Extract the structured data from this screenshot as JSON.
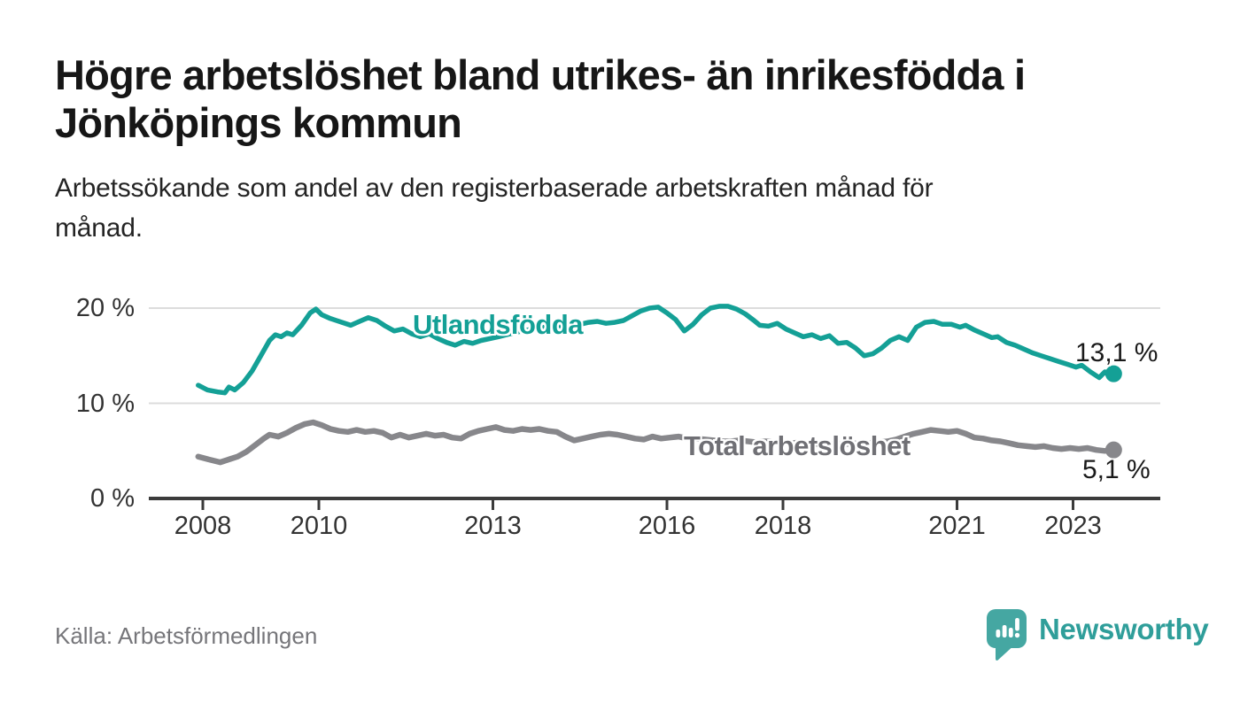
{
  "title_lines": [
    "Högre arbetslöshet bland utrikes- än inrikesfödda i",
    "Jönköpings kommun"
  ],
  "subtitle_lines": [
    "Arbetssökande som andel av den registerbaserade arbetskraften månad för",
    "månad."
  ],
  "source": "Källa: Arbetsförmedlingen",
  "branding": {
    "name": "Newsworthy",
    "icon": "newsworthy-speech-bubble-bar-chart-icon",
    "wordmark_color": "#2f9e9a",
    "icon_color": "#45a7a2"
  },
  "colors": {
    "foreign_born_line": "#14a096",
    "total_line": "#87878b",
    "total_label_text": "#707075",
    "grid": "#dcdcdc",
    "axis": "#3b3b3b",
    "axis_text": "#333333",
    "value_label_text": "#1a1a1a"
  },
  "chart_data": {
    "type": "line",
    "x_unit": "year (monthly data)",
    "y_unit": "percent of registered labour force",
    "x_axis": {
      "ticks": [
        2008,
        2010,
        2013,
        2016,
        2018,
        2021,
        2023
      ],
      "range": [
        2007.9,
        2024.4
      ]
    },
    "y_axis": {
      "tick_labels": [
        "0 %",
        "10 %",
        "20 %"
      ],
      "tick_values": [
        0,
        10,
        20
      ],
      "range": [
        0,
        21
      ],
      "grid": true
    },
    "series": [
      {
        "name": "Utlandsfödda",
        "color": "#14a096",
        "end_label": "13,1 %",
        "end_value": 13.1,
        "points": [
          [
            2007.92,
            11.9
          ],
          [
            2008.08,
            11.4
          ],
          [
            2008.25,
            11.2
          ],
          [
            2008.38,
            11.1
          ],
          [
            2008.45,
            11.7
          ],
          [
            2008.55,
            11.4
          ],
          [
            2008.7,
            12.2
          ],
          [
            2008.85,
            13.4
          ],
          [
            2009.0,
            15.0
          ],
          [
            2009.15,
            16.6
          ],
          [
            2009.25,
            17.2
          ],
          [
            2009.35,
            17.0
          ],
          [
            2009.45,
            17.4
          ],
          [
            2009.55,
            17.2
          ],
          [
            2009.7,
            18.2
          ],
          [
            2009.85,
            19.5
          ],
          [
            2009.95,
            19.9
          ],
          [
            2010.05,
            19.3
          ],
          [
            2010.2,
            18.9
          ],
          [
            2010.4,
            18.5
          ],
          [
            2010.55,
            18.2
          ],
          [
            2010.7,
            18.6
          ],
          [
            2010.85,
            19.0
          ],
          [
            2011.0,
            18.7
          ],
          [
            2011.15,
            18.1
          ],
          [
            2011.3,
            17.6
          ],
          [
            2011.45,
            17.8
          ],
          [
            2011.6,
            17.3
          ],
          [
            2011.75,
            17.0
          ],
          [
            2011.9,
            17.3
          ],
          [
            2012.05,
            16.8
          ],
          [
            2012.2,
            16.4
          ],
          [
            2012.35,
            16.1
          ],
          [
            2012.5,
            16.5
          ],
          [
            2012.65,
            16.3
          ],
          [
            2012.8,
            16.6
          ],
          [
            2012.95,
            16.8
          ],
          [
            2013.1,
            17.0
          ],
          [
            2013.3,
            17.3
          ],
          [
            2013.5,
            17.6
          ],
          [
            2013.7,
            17.8
          ],
          [
            2013.9,
            18.0
          ],
          [
            2014.1,
            18.2
          ],
          [
            2014.3,
            18.0
          ],
          [
            2014.5,
            18.3
          ],
          [
            2014.65,
            18.5
          ],
          [
            2014.8,
            18.6
          ],
          [
            2014.95,
            18.4
          ],
          [
            2015.1,
            18.5
          ],
          [
            2015.25,
            18.7
          ],
          [
            2015.4,
            19.2
          ],
          [
            2015.55,
            19.7
          ],
          [
            2015.7,
            20.0
          ],
          [
            2015.85,
            20.1
          ],
          [
            2016.0,
            19.5
          ],
          [
            2016.15,
            18.8
          ],
          [
            2016.3,
            17.6
          ],
          [
            2016.45,
            18.3
          ],
          [
            2016.6,
            19.3
          ],
          [
            2016.75,
            20.0
          ],
          [
            2016.9,
            20.2
          ],
          [
            2017.05,
            20.2
          ],
          [
            2017.2,
            19.9
          ],
          [
            2017.35,
            19.4
          ],
          [
            2017.5,
            18.7
          ],
          [
            2017.6,
            18.2
          ],
          [
            2017.75,
            18.1
          ],
          [
            2017.9,
            18.4
          ],
          [
            2018.05,
            17.8
          ],
          [
            2018.2,
            17.4
          ],
          [
            2018.35,
            17.0
          ],
          [
            2018.5,
            17.2
          ],
          [
            2018.65,
            16.8
          ],
          [
            2018.8,
            17.1
          ],
          [
            2018.95,
            16.3
          ],
          [
            2019.1,
            16.4
          ],
          [
            2019.25,
            15.8
          ],
          [
            2019.4,
            15.0
          ],
          [
            2019.55,
            15.2
          ],
          [
            2019.7,
            15.8
          ],
          [
            2019.85,
            16.6
          ],
          [
            2020.0,
            17.0
          ],
          [
            2020.15,
            16.6
          ],
          [
            2020.3,
            18.0
          ],
          [
            2020.45,
            18.5
          ],
          [
            2020.6,
            18.6
          ],
          [
            2020.75,
            18.3
          ],
          [
            2020.9,
            18.3
          ],
          [
            2021.05,
            18.0
          ],
          [
            2021.15,
            18.2
          ],
          [
            2021.3,
            17.7
          ],
          [
            2021.45,
            17.3
          ],
          [
            2021.6,
            16.9
          ],
          [
            2021.7,
            17.0
          ],
          [
            2021.85,
            16.4
          ],
          [
            2022.0,
            16.1
          ],
          [
            2022.15,
            15.7
          ],
          [
            2022.3,
            15.3
          ],
          [
            2022.45,
            15.0
          ],
          [
            2022.6,
            14.7
          ],
          [
            2022.75,
            14.4
          ],
          [
            2022.9,
            14.1
          ],
          [
            2023.05,
            13.8
          ],
          [
            2023.15,
            14.0
          ],
          [
            2023.3,
            13.3
          ],
          [
            2023.45,
            12.7
          ],
          [
            2023.55,
            13.3
          ],
          [
            2023.62,
            12.9
          ],
          [
            2023.7,
            13.1
          ]
        ]
      },
      {
        "name": "Total arbetslöshet",
        "color": "#87878b",
        "end_label": "5,1 %",
        "end_value": 5.1,
        "points": [
          [
            2007.92,
            4.4
          ],
          [
            2008.1,
            4.1
          ],
          [
            2008.3,
            3.8
          ],
          [
            2008.45,
            4.1
          ],
          [
            2008.6,
            4.4
          ],
          [
            2008.75,
            4.9
          ],
          [
            2008.9,
            5.6
          ],
          [
            2009.05,
            6.3
          ],
          [
            2009.15,
            6.7
          ],
          [
            2009.3,
            6.5
          ],
          [
            2009.45,
            6.9
          ],
          [
            2009.6,
            7.4
          ],
          [
            2009.75,
            7.8
          ],
          [
            2009.9,
            8.0
          ],
          [
            2010.05,
            7.7
          ],
          [
            2010.2,
            7.3
          ],
          [
            2010.35,
            7.1
          ],
          [
            2010.5,
            7.0
          ],
          [
            2010.65,
            7.2
          ],
          [
            2010.8,
            7.0
          ],
          [
            2010.95,
            7.1
          ],
          [
            2011.1,
            6.9
          ],
          [
            2011.25,
            6.4
          ],
          [
            2011.4,
            6.7
          ],
          [
            2011.55,
            6.4
          ],
          [
            2011.7,
            6.6
          ],
          [
            2011.85,
            6.8
          ],
          [
            2012.0,
            6.6
          ],
          [
            2012.15,
            6.7
          ],
          [
            2012.3,
            6.4
          ],
          [
            2012.45,
            6.3
          ],
          [
            2012.6,
            6.8
          ],
          [
            2012.75,
            7.1
          ],
          [
            2012.9,
            7.3
          ],
          [
            2013.05,
            7.5
          ],
          [
            2013.2,
            7.2
          ],
          [
            2013.35,
            7.1
          ],
          [
            2013.5,
            7.3
          ],
          [
            2013.65,
            7.2
          ],
          [
            2013.8,
            7.3
          ],
          [
            2013.95,
            7.1
          ],
          [
            2014.1,
            7.0
          ],
          [
            2014.25,
            6.5
          ],
          [
            2014.4,
            6.1
          ],
          [
            2014.55,
            6.3
          ],
          [
            2014.7,
            6.5
          ],
          [
            2014.85,
            6.7
          ],
          [
            2015.0,
            6.8
          ],
          [
            2015.15,
            6.7
          ],
          [
            2015.3,
            6.5
          ],
          [
            2015.45,
            6.3
          ],
          [
            2015.6,
            6.2
          ],
          [
            2015.75,
            6.5
          ],
          [
            2015.9,
            6.3
          ],
          [
            2016.05,
            6.4
          ],
          [
            2016.2,
            6.5
          ],
          [
            2016.35,
            6.3
          ],
          [
            2016.5,
            6.3
          ],
          [
            2016.65,
            6.2
          ],
          [
            2016.8,
            6.1
          ],
          [
            2016.95,
            6.0
          ],
          [
            2017.1,
            6.0
          ],
          [
            2017.25,
            6.1
          ],
          [
            2017.4,
            6.0
          ],
          [
            2017.55,
            5.9
          ],
          [
            2017.7,
            6.0
          ],
          [
            2017.85,
            5.9
          ],
          [
            2018.0,
            5.9
          ],
          [
            2018.15,
            5.8
          ],
          [
            2018.3,
            5.9
          ],
          [
            2018.45,
            5.8
          ],
          [
            2018.6,
            5.7
          ],
          [
            2018.75,
            5.8
          ],
          [
            2018.9,
            5.7
          ],
          [
            2019.05,
            5.7
          ],
          [
            2019.2,
            5.8
          ],
          [
            2019.35,
            5.7
          ],
          [
            2019.5,
            5.8
          ],
          [
            2019.65,
            5.9
          ],
          [
            2019.8,
            6.0
          ],
          [
            2019.95,
            6.2
          ],
          [
            2020.1,
            6.5
          ],
          [
            2020.25,
            6.8
          ],
          [
            2020.4,
            7.0
          ],
          [
            2020.55,
            7.2
          ],
          [
            2020.7,
            7.1
          ],
          [
            2020.85,
            7.0
          ],
          [
            2021.0,
            7.1
          ],
          [
            2021.15,
            6.8
          ],
          [
            2021.3,
            6.4
          ],
          [
            2021.45,
            6.3
          ],
          [
            2021.6,
            6.1
          ],
          [
            2021.75,
            6.0
          ],
          [
            2021.9,
            5.8
          ],
          [
            2022.05,
            5.6
          ],
          [
            2022.2,
            5.5
          ],
          [
            2022.35,
            5.4
          ],
          [
            2022.5,
            5.5
          ],
          [
            2022.65,
            5.3
          ],
          [
            2022.8,
            5.2
          ],
          [
            2022.95,
            5.3
          ],
          [
            2023.1,
            5.2
          ],
          [
            2023.25,
            5.3
          ],
          [
            2023.4,
            5.1
          ],
          [
            2023.55,
            5.0
          ],
          [
            2023.7,
            5.1
          ]
        ]
      }
    ]
  }
}
